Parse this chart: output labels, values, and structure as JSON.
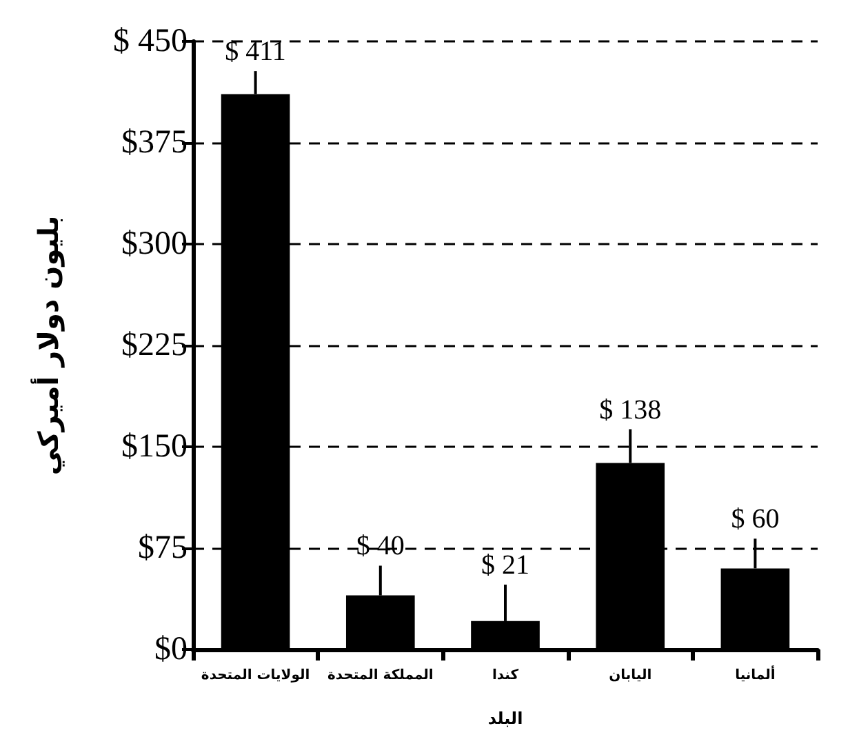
{
  "chart_data": {
    "type": "bar",
    "xlabel": "البلد",
    "ylabel": "بليون دولار أميركي",
    "categories": [
      "الولايات المتحدة",
      "المملكة المتحدة",
      "كندا",
      "اليابان",
      "ألمانيا"
    ],
    "values": [
      411,
      40,
      21,
      138,
      60
    ],
    "value_labels": [
      "$ 411",
      "$ 40",
      "$ 21",
      "$ 138",
      "$ 60"
    ],
    "errors": [
      [
        411,
        428
      ],
      [
        40,
        62
      ],
      [
        21,
        48
      ],
      [
        138,
        163
      ],
      [
        60,
        82
      ]
    ],
    "color": "#000000",
    "ylim": [
      0,
      450
    ],
    "yticks": [
      {
        "value": 0,
        "label": "$0"
      },
      {
        "value": 75,
        "label": "$75"
      },
      {
        "value": 150,
        "label": "$150"
      },
      {
        "value": 225,
        "label": "$225"
      },
      {
        "value": 300,
        "label": "$300"
      },
      {
        "value": 375,
        "label": "$375"
      },
      {
        "value": 450,
        "label": "$ 450"
      }
    ],
    "grid": "y"
  }
}
